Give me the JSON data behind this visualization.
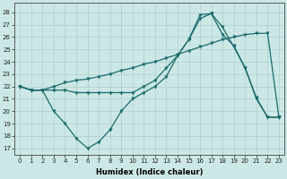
{
  "xlabel": "Humidex (Indice chaleur)",
  "bg_color": "#cce8e6",
  "line_color": "#1a6b6b",
  "grid_color": "#aacfcc",
  "xlim": [
    -0.5,
    23.5
  ],
  "ylim": [
    16.5,
    28.8
  ],
  "yticks": [
    17,
    18,
    19,
    20,
    21,
    22,
    23,
    24,
    25,
    26,
    27,
    28
  ],
  "xticks": [
    0,
    1,
    2,
    3,
    4,
    5,
    6,
    7,
    8,
    9,
    10,
    11,
    12,
    13,
    14,
    15,
    16,
    17,
    18,
    19,
    20,
    21,
    22,
    23
  ],
  "line1_y": [
    22,
    21.7,
    21.7,
    20.0,
    19.0,
    17.8,
    17.0,
    17.5,
    18.5,
    20.0,
    21.0,
    21.5,
    22.0,
    22.8,
    24.5,
    25.8,
    27.8,
    27.9,
    26.8,
    25.2,
    23.5,
    21.0,
    19.5,
    19.5
  ],
  "line2_y": [
    22,
    21.7,
    21.7,
    21.7,
    21.7,
    21.5,
    21.5,
    21.5,
    21.5,
    21.5,
    21.5,
    22.0,
    22.5,
    23.5,
    24.5,
    25.8,
    27.5,
    27.9,
    26.2,
    25.3,
    23.5,
    21.1,
    19.5,
    19.5
  ],
  "line3_y": [
    22,
    21.7,
    21.7,
    22.0,
    22.3,
    22.5,
    22.6,
    22.8,
    23.0,
    23.3,
    23.5,
    23.8,
    24.0,
    24.3,
    24.6,
    24.9,
    25.2,
    25.5,
    25.8,
    26.0,
    26.2,
    26.3,
    26.3,
    19.5
  ],
  "xlabel_fontsize": 6,
  "tick_fontsize": 5
}
